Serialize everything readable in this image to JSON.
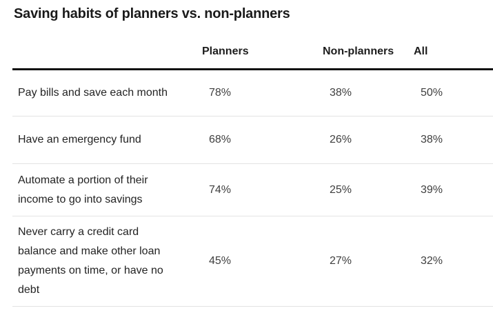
{
  "chart_data": {
    "type": "table",
    "title": "Saving habits of planners vs. non-planners",
    "columns": [
      "",
      "Planners",
      "Non-planners",
      "All"
    ],
    "rows": [
      [
        "Pay bills and save each month",
        "78%",
        "38%",
        "50%"
      ],
      [
        "Have an emergency fund",
        "68%",
        "26%",
        "38%"
      ],
      [
        "Automate a portion of their income to go into savings",
        "74%",
        "25%",
        "39%"
      ],
      [
        "Never carry a credit card balance and make other loan payments on time, or have no debt",
        "45%",
        "27%",
        "32%"
      ]
    ],
    "layout": {
      "legend": "none",
      "grid": "horizontal-row-dividers",
      "header_rule": "thick-black",
      "value_alignment": "left"
    }
  },
  "colors": {
    "background": "#ffffff",
    "title_text": "#1a1a1a",
    "header_text": "#1d1d1d",
    "label_text": "#232323",
    "value_text": "#3e3e3e",
    "header_rule": "#0e0e0e",
    "row_divider": "#e3e3e3"
  }
}
